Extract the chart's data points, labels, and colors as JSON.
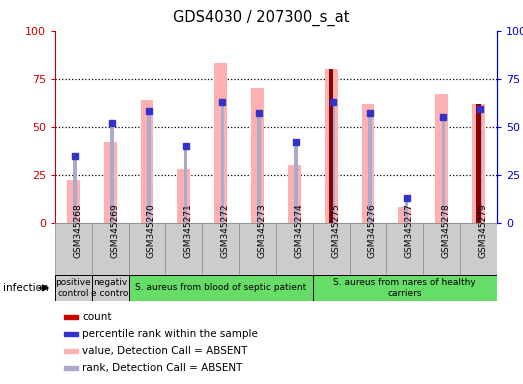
{
  "title": "GDS4030 / 207300_s_at",
  "samples": [
    "GSM345268",
    "GSM345269",
    "GSM345270",
    "GSM345271",
    "GSM345272",
    "GSM345273",
    "GSM345274",
    "GSM345275",
    "GSM345276",
    "GSM345277",
    "GSM345278",
    "GSM345279"
  ],
  "bar_values_pink": [
    22,
    42,
    64,
    28,
    83,
    70,
    30,
    80,
    62,
    8,
    67,
    62
  ],
  "rank_dots_blue": [
    35,
    52,
    58,
    40,
    63,
    57,
    42,
    63,
    57,
    13,
    55,
    59
  ],
  "count_bars_red": [
    0,
    0,
    0,
    0,
    0,
    0,
    0,
    80,
    0,
    0,
    0,
    62
  ],
  "rank_bars_light_blue": [
    35,
    52,
    58,
    40,
    63,
    57,
    42,
    63,
    57,
    13,
    55,
    59
  ],
  "groups": [
    {
      "label": "positive\ncontrol",
      "start": 0,
      "end": 1,
      "color": "#cccccc"
    },
    {
      "label": "negativ\ne contro",
      "start": 1,
      "end": 2,
      "color": "#cccccc"
    },
    {
      "label": "S. aureus from blood of septic patient",
      "start": 2,
      "end": 7,
      "color": "#66dd66"
    },
    {
      "label": "S. aureus from nares of healthy\ncarriers",
      "start": 7,
      "end": 12,
      "color": "#66dd66"
    }
  ],
  "ylim": [
    0,
    100
  ],
  "grid_values": [
    25,
    50,
    75
  ],
  "bar_color_pink": "#ffb0b0",
  "bar_color_dark_red": "#8b0000",
  "dot_color_blue": "#3333cc",
  "rank_bar_color_light_blue": "#aaaacc",
  "axis_left_color": "#cc0000",
  "axis_right_color": "#0000cc",
  "label_area_color": "#cccccc",
  "legend_items": [
    {
      "label": "count",
      "color": "#cc0000"
    },
    {
      "label": "percentile rank within the sample",
      "color": "#3333cc"
    },
    {
      "label": "value, Detection Call = ABSENT",
      "color": "#ffb0b0"
    },
    {
      "label": "rank, Detection Call = ABSENT",
      "color": "#aaaacc"
    }
  ]
}
